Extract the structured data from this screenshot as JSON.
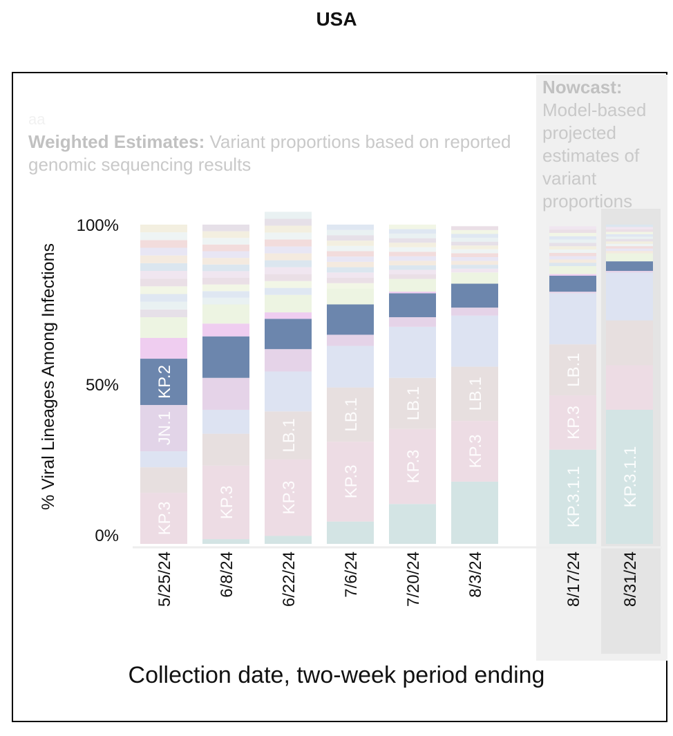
{
  "page_title": "USA",
  "annotations": {
    "aa": "aa",
    "weighted_bold": "Weighted Estimates:",
    "weighted_text": "Variant proportions based on reported genomic sequencing results",
    "nowcast_bold": "Nowcast:",
    "nowcast_text": "Model-based projected estimates of variant proportions"
  },
  "chart_data": {
    "type": "bar",
    "stacked": true,
    "ylabel": "% Viral Lineages Among Infections",
    "xlabel": "Collection date, two-week period ending",
    "y_ticks": [
      "0%",
      "50%",
      "100%"
    ],
    "ylim": [
      0,
      100
    ],
    "categories": [
      "5/25/24",
      "6/8/24",
      "6/22/24",
      "7/6/24",
      "7/20/24",
      "8/3/24",
      "8/17/24",
      "8/31/24"
    ],
    "nowcast_categories": [
      "8/17/24",
      "8/31/24"
    ],
    "colors": {
      "KP.3.1.1": "#d3e4e4",
      "KP.3": "#eddce4",
      "LB.1": "#e7dfdf",
      "KP.2": "#6c86ad",
      "JN.1": "#e2d4e8",
      "other_blue": "#dde3f2",
      "other_beige": "#e7dfdf",
      "other_pink": "#ead8e7",
      "other_lavender": "#e5d3e8",
      "other_magenta": "#efcdf0",
      "other_green": "#edf4e2"
    },
    "series": [
      {
        "name": "KP.3.1.1",
        "values": [
          0,
          1.5,
          2.5,
          7,
          12.5,
          19.5,
          29.5,
          42
        ],
        "label_values": [
          null,
          null,
          null,
          null,
          null,
          null,
          "KP.3.1.1",
          "KP.3.1.1"
        ]
      },
      {
        "name": "KP.3",
        "values": [
          16,
          23,
          24,
          25,
          23.5,
          19,
          17,
          14
        ],
        "label_values": [
          "KP.3",
          "KP.3",
          "KP.3",
          "KP.3",
          "KP.3",
          "KP.3",
          "KP.3",
          null
        ]
      },
      {
        "name": "LB.1",
        "values": [
          0,
          0,
          15,
          17,
          16,
          17,
          16,
          0
        ],
        "label_values": [
          null,
          null,
          "LB.1",
          "LB.1",
          "LB.1",
          "LB.1",
          "LB.1",
          null
        ]
      },
      {
        "name": "",
        "values": [
          8,
          10,
          0,
          0,
          0,
          0,
          0,
          14
        ],
        "color": "other_beige"
      },
      {
        "name": "",
        "values": [
          5,
          7.5,
          12.5,
          13,
          16,
          16,
          16,
          15
        ],
        "color": "other_blue"
      },
      {
        "name": "JN.1",
        "values": [
          14.5,
          0,
          0,
          0,
          0,
          0,
          0,
          0
        ],
        "label_values": [
          "JN.1",
          null,
          null,
          null,
          null,
          null,
          null,
          null
        ]
      },
      {
        "name": "",
        "values": [
          0,
          10,
          7,
          3.5,
          3,
          2.5,
          0.5,
          0.5
        ],
        "color": "other_lavender"
      },
      {
        "name": "KP.2",
        "values": [
          14.5,
          13,
          9.5,
          9.5,
          7.5,
          7.5,
          5,
          3
        ],
        "label_values": [
          "KP.2",
          null,
          null,
          null,
          null,
          null,
          null,
          null
        ]
      },
      {
        "name": "",
        "values": [
          6.5,
          4,
          2,
          0,
          0.5,
          0,
          0.5,
          0
        ],
        "color": "other_magenta"
      },
      {
        "name": "",
        "values": [
          6.5,
          6,
          5.5,
          5,
          4,
          3.5,
          2.5,
          2.5
        ],
        "color": "other_green"
      },
      {
        "name": "",
        "values": [
          29,
          25,
          26,
          20,
          17,
          14.5,
          12.5,
          9
        ],
        "color": "other_mixed"
      }
    ]
  }
}
